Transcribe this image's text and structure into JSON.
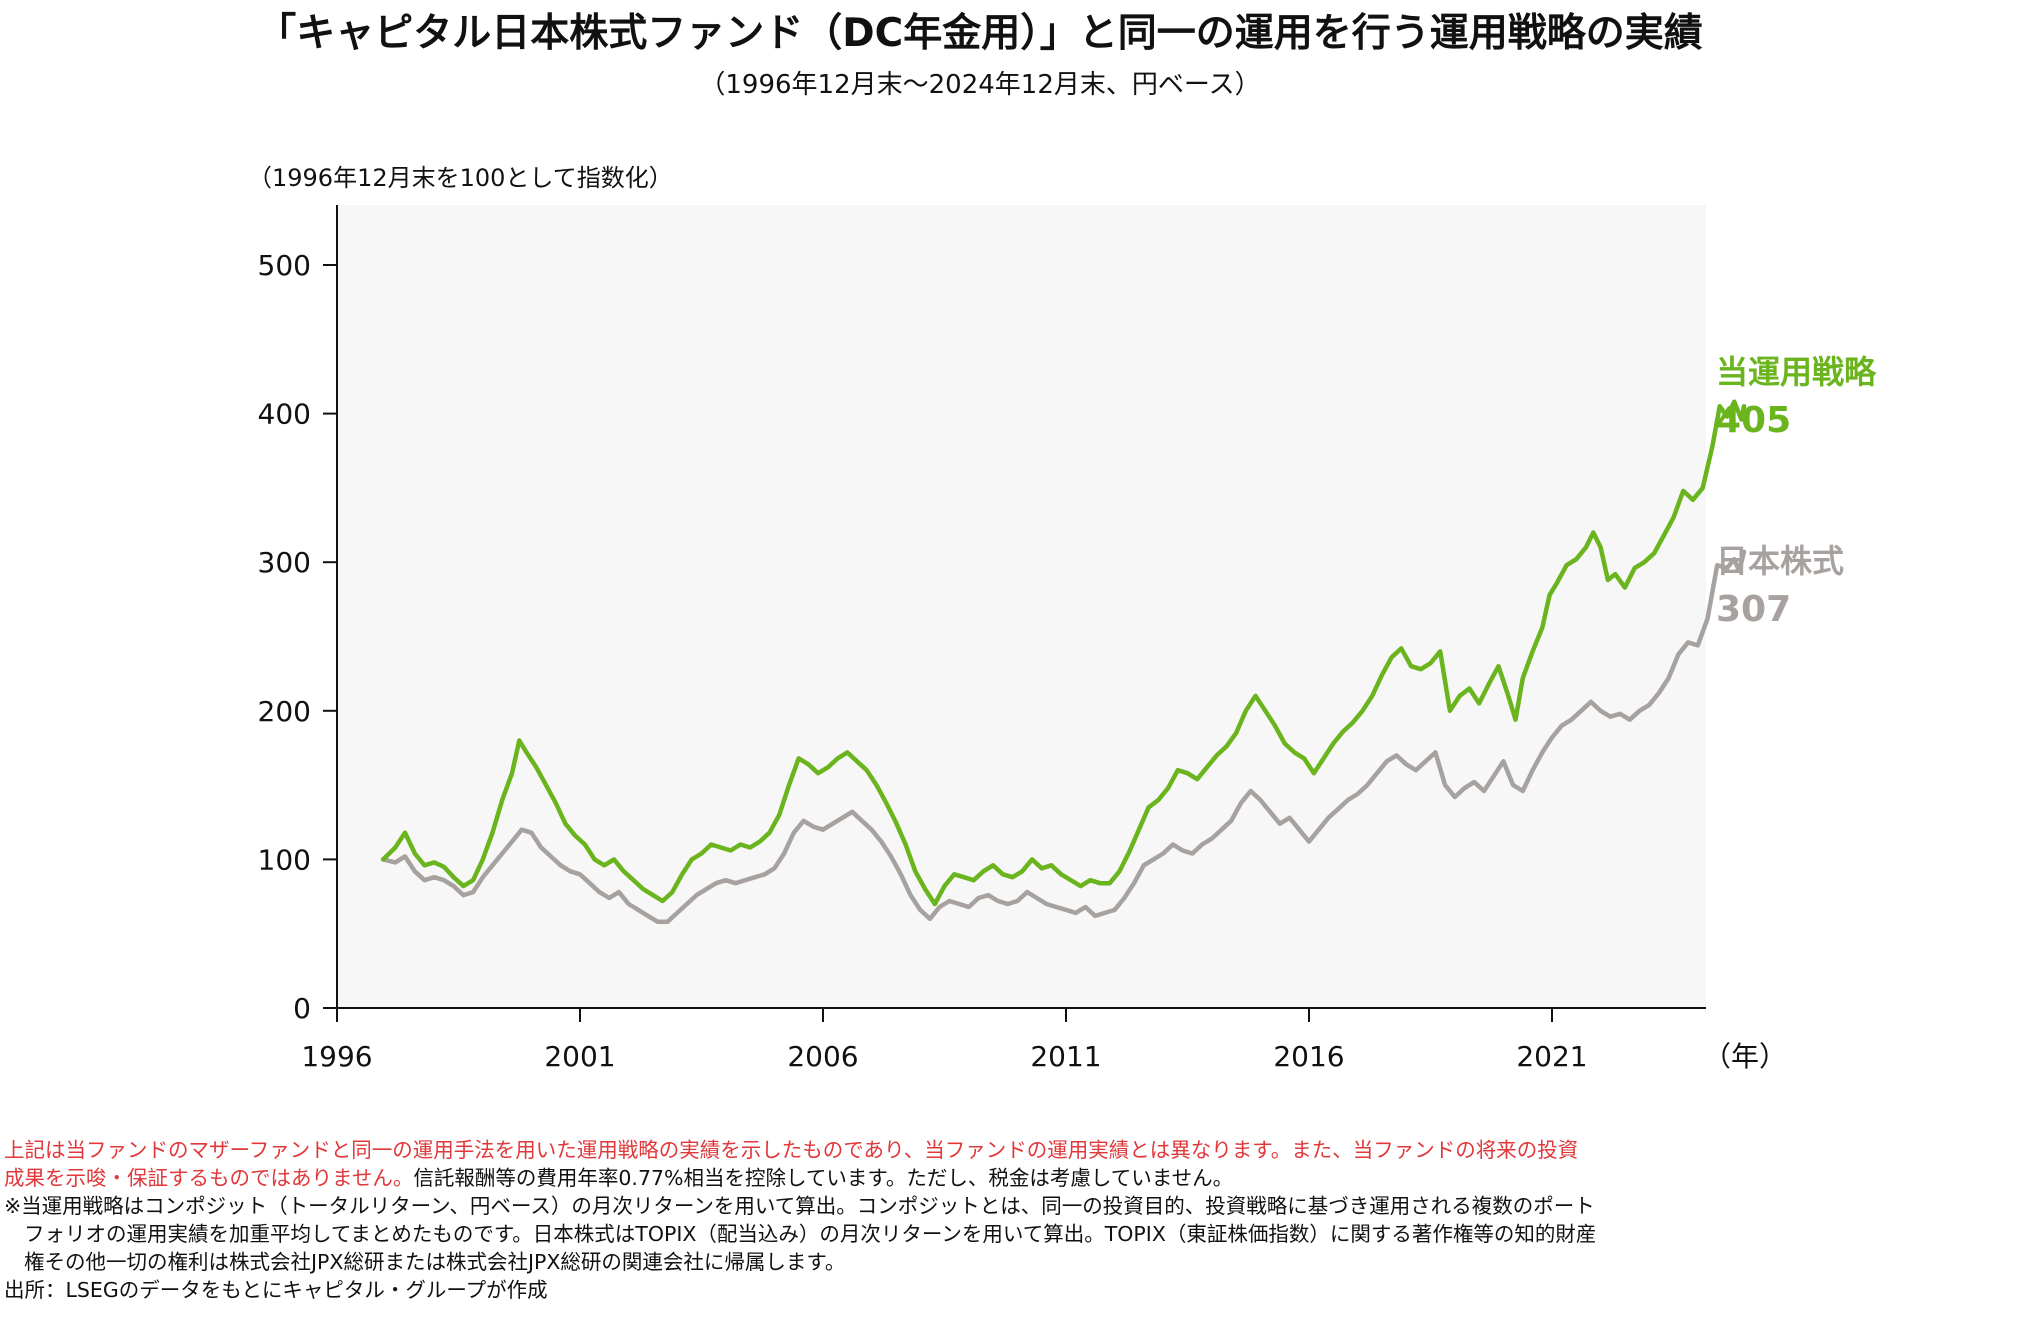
{
  "title": "「キャピタル日本株式ファンド（DC年金用）」と同一の運用を行う運用戦略の実績",
  "subtitle": "（1996年12月末～2024年12月末、円ベース）",
  "colors": {
    "strategy": "#6ab41e",
    "index": "#a7a29f",
    "plot_bg": "#f7f7f7",
    "axis": "#111111",
    "note_red": "#e0383b"
  },
  "chart_data": {
    "type": "line",
    "ylabel": "（1996年12月末を100として指数化）",
    "xlabel": "（年）",
    "ylim": [
      0,
      530
    ],
    "xlim": [
      1996.9,
      2025.0
    ],
    "yticks": [
      0,
      100,
      200,
      300,
      400,
      500
    ],
    "xticks": [
      1996,
      2001,
      2006,
      2011,
      2016,
      2021
    ],
    "series": [
      {
        "name": "当運用戦略",
        "end_label": "405",
        "points": [
          [
            1996.95,
            100
          ],
          [
            1997.2,
            108
          ],
          [
            1997.4,
            118
          ],
          [
            1997.6,
            104
          ],
          [
            1997.8,
            96
          ],
          [
            1998.0,
            98
          ],
          [
            1998.2,
            95
          ],
          [
            1998.4,
            88
          ],
          [
            1998.6,
            82
          ],
          [
            1998.8,
            86
          ],
          [
            1999.0,
            100
          ],
          [
            1999.2,
            118
          ],
          [
            1999.4,
            140
          ],
          [
            1999.6,
            158
          ],
          [
            1999.75,
            180
          ],
          [
            1999.9,
            172
          ],
          [
            2000.1,
            162
          ],
          [
            2000.3,
            150
          ],
          [
            2000.5,
            138
          ],
          [
            2000.7,
            124
          ],
          [
            2000.9,
            116
          ],
          [
            2001.1,
            110
          ],
          [
            2001.3,
            100
          ],
          [
            2001.5,
            96
          ],
          [
            2001.7,
            100
          ],
          [
            2001.9,
            92
          ],
          [
            2002.1,
            86
          ],
          [
            2002.3,
            80
          ],
          [
            2002.5,
            76
          ],
          [
            2002.7,
            72
          ],
          [
            2002.9,
            78
          ],
          [
            2003.1,
            90
          ],
          [
            2003.3,
            100
          ],
          [
            2003.5,
            104
          ],
          [
            2003.7,
            110
          ],
          [
            2003.9,
            108
          ],
          [
            2004.1,
            106
          ],
          [
            2004.3,
            110
          ],
          [
            2004.5,
            108
          ],
          [
            2004.7,
            112
          ],
          [
            2004.9,
            118
          ],
          [
            2005.1,
            130
          ],
          [
            2005.3,
            150
          ],
          [
            2005.5,
            168
          ],
          [
            2005.7,
            164
          ],
          [
            2005.9,
            158
          ],
          [
            2006.1,
            162
          ],
          [
            2006.3,
            168
          ],
          [
            2006.5,
            172
          ],
          [
            2006.7,
            166
          ],
          [
            2006.9,
            160
          ],
          [
            2007.1,
            150
          ],
          [
            2007.3,
            138
          ],
          [
            2007.5,
            125
          ],
          [
            2007.7,
            110
          ],
          [
            2007.9,
            92
          ],
          [
            2008.1,
            80
          ],
          [
            2008.3,
            70
          ],
          [
            2008.5,
            82
          ],
          [
            2008.7,
            90
          ],
          [
            2008.9,
            88
          ],
          [
            2009.1,
            86
          ],
          [
            2009.3,
            92
          ],
          [
            2009.5,
            96
          ],
          [
            2009.7,
            90
          ],
          [
            2009.9,
            88
          ],
          [
            2010.1,
            92
          ],
          [
            2010.3,
            100
          ],
          [
            2010.5,
            94
          ],
          [
            2010.7,
            96
          ],
          [
            2010.9,
            90
          ],
          [
            2011.1,
            86
          ],
          [
            2011.3,
            82
          ],
          [
            2011.5,
            86
          ],
          [
            2011.7,
            84
          ],
          [
            2011.9,
            84
          ],
          [
            2012.1,
            92
          ],
          [
            2012.3,
            105
          ],
          [
            2012.5,
            120
          ],
          [
            2012.7,
            135
          ],
          [
            2012.9,
            140
          ],
          [
            2013.1,
            148
          ],
          [
            2013.3,
            160
          ],
          [
            2013.5,
            158
          ],
          [
            2013.7,
            154
          ],
          [
            2013.9,
            162
          ],
          [
            2014.1,
            170
          ],
          [
            2014.3,
            176
          ],
          [
            2014.5,
            185
          ],
          [
            2014.7,
            200
          ],
          [
            2014.9,
            210
          ],
          [
            2015.1,
            200
          ],
          [
            2015.3,
            190
          ],
          [
            2015.5,
            178
          ],
          [
            2015.7,
            172
          ],
          [
            2015.9,
            168
          ],
          [
            2016.1,
            158
          ],
          [
            2016.3,
            168
          ],
          [
            2016.5,
            178
          ],
          [
            2016.7,
            186
          ],
          [
            2016.9,
            192
          ],
          [
            2017.1,
            200
          ],
          [
            2017.3,
            210
          ],
          [
            2017.5,
            224
          ],
          [
            2017.7,
            236
          ],
          [
            2017.9,
            242
          ],
          [
            2018.1,
            230
          ],
          [
            2018.3,
            228
          ],
          [
            2018.5,
            232
          ],
          [
            2018.7,
            240
          ],
          [
            2018.9,
            200
          ],
          [
            2019.1,
            210
          ],
          [
            2019.3,
            215
          ],
          [
            2019.5,
            205
          ],
          [
            2019.7,
            218
          ],
          [
            2019.9,
            230
          ],
          [
            2020.1,
            210
          ],
          [
            2020.25,
            194
          ],
          [
            2020.4,
            222
          ],
          [
            2020.6,
            240
          ],
          [
            2020.8,
            256
          ],
          [
            2020.95,
            278
          ],
          [
            2021.1,
            286
          ],
          [
            2021.3,
            298
          ],
          [
            2021.5,
            302
          ],
          [
            2021.7,
            310
          ],
          [
            2021.85,
            320
          ],
          [
            2022.0,
            310
          ],
          [
            2022.15,
            288
          ],
          [
            2022.3,
            292
          ],
          [
            2022.5,
            283
          ],
          [
            2022.7,
            296
          ],
          [
            2022.9,
            300
          ],
          [
            2023.1,
            306
          ],
          [
            2023.3,
            318
          ],
          [
            2023.5,
            330
          ],
          [
            2023.7,
            348
          ],
          [
            2023.9,
            342
          ],
          [
            2024.1,
            350
          ],
          [
            2024.3,
            378
          ],
          [
            2024.45,
            405
          ],
          [
            2024.6,
            398
          ],
          [
            2024.75,
            408
          ],
          [
            2024.9,
            396
          ],
          [
            2024.95,
            405
          ]
        ]
      },
      {
        "name": "日本株式",
        "end_label": "307",
        "points": [
          [
            1996.95,
            100
          ],
          [
            1997.2,
            98
          ],
          [
            1997.4,
            102
          ],
          [
            1997.6,
            92
          ],
          [
            1997.8,
            86
          ],
          [
            1998.0,
            88
          ],
          [
            1998.2,
            86
          ],
          [
            1998.4,
            82
          ],
          [
            1998.6,
            76
          ],
          [
            1998.8,
            78
          ],
          [
            1999.0,
            88
          ],
          [
            1999.2,
            96
          ],
          [
            1999.4,
            104
          ],
          [
            1999.6,
            112
          ],
          [
            1999.8,
            120
          ],
          [
            2000.0,
            118
          ],
          [
            2000.2,
            108
          ],
          [
            2000.4,
            102
          ],
          [
            2000.6,
            96
          ],
          [
            2000.8,
            92
          ],
          [
            2001.0,
            90
          ],
          [
            2001.2,
            84
          ],
          [
            2001.4,
            78
          ],
          [
            2001.6,
            74
          ],
          [
            2001.8,
            78
          ],
          [
            2002.0,
            70
          ],
          [
            2002.2,
            66
          ],
          [
            2002.4,
            62
          ],
          [
            2002.6,
            58
          ],
          [
            2002.8,
            58
          ],
          [
            2003.0,
            64
          ],
          [
            2003.2,
            70
          ],
          [
            2003.4,
            76
          ],
          [
            2003.6,
            80
          ],
          [
            2003.8,
            84
          ],
          [
            2004.0,
            86
          ],
          [
            2004.2,
            84
          ],
          [
            2004.4,
            86
          ],
          [
            2004.6,
            88
          ],
          [
            2004.8,
            90
          ],
          [
            2005.0,
            94
          ],
          [
            2005.2,
            104
          ],
          [
            2005.4,
            118
          ],
          [
            2005.6,
            126
          ],
          [
            2005.8,
            122
          ],
          [
            2006.0,
            120
          ],
          [
            2006.2,
            124
          ],
          [
            2006.4,
            128
          ],
          [
            2006.6,
            132
          ],
          [
            2006.8,
            126
          ],
          [
            2007.0,
            120
          ],
          [
            2007.2,
            112
          ],
          [
            2007.4,
            102
          ],
          [
            2007.6,
            90
          ],
          [
            2007.8,
            76
          ],
          [
            2008.0,
            66
          ],
          [
            2008.2,
            60
          ],
          [
            2008.4,
            68
          ],
          [
            2008.6,
            72
          ],
          [
            2008.8,
            70
          ],
          [
            2009.0,
            68
          ],
          [
            2009.2,
            74
          ],
          [
            2009.4,
            76
          ],
          [
            2009.6,
            72
          ],
          [
            2009.8,
            70
          ],
          [
            2010.0,
            72
          ],
          [
            2010.2,
            78
          ],
          [
            2010.4,
            74
          ],
          [
            2010.6,
            70
          ],
          [
            2010.8,
            68
          ],
          [
            2011.0,
            66
          ],
          [
            2011.2,
            64
          ],
          [
            2011.4,
            68
          ],
          [
            2011.6,
            62
          ],
          [
            2011.8,
            64
          ],
          [
            2012.0,
            66
          ],
          [
            2012.2,
            74
          ],
          [
            2012.4,
            84
          ],
          [
            2012.6,
            96
          ],
          [
            2012.8,
            100
          ],
          [
            2013.0,
            104
          ],
          [
            2013.2,
            110
          ],
          [
            2013.4,
            106
          ],
          [
            2013.6,
            104
          ],
          [
            2013.8,
            110
          ],
          [
            2014.0,
            114
          ],
          [
            2014.2,
            120
          ],
          [
            2014.4,
            126
          ],
          [
            2014.6,
            138
          ],
          [
            2014.8,
            146
          ],
          [
            2015.0,
            140
          ],
          [
            2015.2,
            132
          ],
          [
            2015.4,
            124
          ],
          [
            2015.6,
            128
          ],
          [
            2015.8,
            120
          ],
          [
            2016.0,
            112
          ],
          [
            2016.2,
            120
          ],
          [
            2016.4,
            128
          ],
          [
            2016.6,
            134
          ],
          [
            2016.8,
            140
          ],
          [
            2017.0,
            144
          ],
          [
            2017.2,
            150
          ],
          [
            2017.4,
            158
          ],
          [
            2017.6,
            166
          ],
          [
            2017.8,
            170
          ],
          [
            2018.0,
            164
          ],
          [
            2018.2,
            160
          ],
          [
            2018.4,
            166
          ],
          [
            2018.6,
            172
          ],
          [
            2018.8,
            150
          ],
          [
            2019.0,
            142
          ],
          [
            2019.2,
            148
          ],
          [
            2019.4,
            152
          ],
          [
            2019.6,
            146
          ],
          [
            2019.8,
            156
          ],
          [
            2020.0,
            166
          ],
          [
            2020.2,
            150
          ],
          [
            2020.4,
            146
          ],
          [
            2020.6,
            160
          ],
          [
            2020.8,
            172
          ],
          [
            2021.0,
            182
          ],
          [
            2021.2,
            190
          ],
          [
            2021.4,
            194
          ],
          [
            2021.6,
            200
          ],
          [
            2021.8,
            206
          ],
          [
            2022.0,
            200
          ],
          [
            2022.2,
            196
          ],
          [
            2022.4,
            198
          ],
          [
            2022.6,
            194
          ],
          [
            2022.8,
            200
          ],
          [
            2023.0,
            204
          ],
          [
            2023.2,
            212
          ],
          [
            2023.4,
            222
          ],
          [
            2023.6,
            238
          ],
          [
            2023.8,
            246
          ],
          [
            2024.0,
            244
          ],
          [
            2024.2,
            262
          ],
          [
            2024.4,
            298
          ],
          [
            2024.6,
            296
          ],
          [
            2024.75,
            302
          ],
          [
            2024.85,
            294
          ],
          [
            2024.95,
            307
          ]
        ]
      }
    ]
  },
  "notes": {
    "line1_red": "上記は当ファンドのマザーファンドと同一の運用手法を用いた運用戦略の実績を示したものであり、当ファンドの運用実績とは異なります。また、当ファンドの将来の投資",
    "line2_red": "成果を示唆・保証するものではありません。",
    "line2_black": "信託報酬等の費用年率0.77%相当を控除しています。ただし、税金は考慮していません。",
    "line3": "※当運用戦略はコンポジット（トータルリターン、円ベース）の月次リターンを用いて算出。コンポジットとは、同一の投資目的、投資戦略に基づき運用される複数のポート",
    "line4": "フォリオの運用実績を加重平均してまとめたものです。日本株式はTOPIX（配当込み）の月次リターンを用いて算出。TOPIX（東証株価指数）に関する著作権等の知的財産",
    "line5": "権その他一切の権利は株式会社JPX総研または株式会社JPX総研の関連会社に帰属します。",
    "source": "出所：LSEGのデータをもとにキャピタル・グループが作成"
  }
}
